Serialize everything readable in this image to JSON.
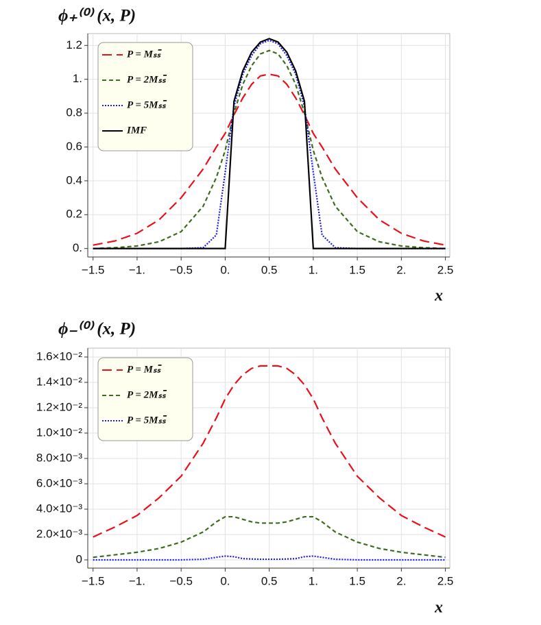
{
  "chart_data": [
    {
      "type": "line",
      "title": "ϕ₊⁽⁰⁾ (x, P)",
      "x_label": "x",
      "grid": true,
      "legend": "upper left",
      "xlim": [
        -1.56,
        2.55
      ],
      "ylim": [
        -0.05,
        1.27
      ],
      "xticks": [
        {
          "value": -1.5,
          "label": "−1.5"
        },
        {
          "value": -1,
          "label": "−1."
        },
        {
          "value": -0.5,
          "label": "−0.5"
        },
        {
          "value": 0,
          "label": "0."
        },
        0.5,
        {
          "value": 1,
          "label": "1."
        },
        1.5,
        {
          "value": 2,
          "label": "2."
        },
        2.5
      ],
      "yticks": [
        {
          "value": 0,
          "label": "0."
        },
        0.2,
        0.4,
        0.6,
        0.8,
        {
          "value": 1,
          "label": "1."
        },
        1.2
      ],
      "x": [
        -1.5,
        -1.25,
        -1,
        -0.75,
        -0.5,
        -0.25,
        -0.1,
        0,
        0.1,
        0.2,
        0.3,
        0.4,
        0.5,
        0.6,
        0.7,
        0.8,
        0.9,
        1,
        1.1,
        1.25,
        1.5,
        1.75,
        2,
        2.25,
        2.5
      ],
      "series": [
        {
          "name": "P = Mₛₛ̄",
          "color": "#e8101a",
          "linestyle": "long-dash",
          "values": [
            0.02,
            0.045,
            0.09,
            0.17,
            0.3,
            0.47,
            0.6,
            0.68,
            0.79,
            0.89,
            0.97,
            1.02,
            1.03,
            1.02,
            0.97,
            0.89,
            0.79,
            0.68,
            0.6,
            0.47,
            0.3,
            0.17,
            0.09,
            0.045,
            0.02
          ]
        },
        {
          "name": "P = 2Mₛₛ̄",
          "color": "#3d6b1f",
          "linestyle": "dashed",
          "values": [
            0,
            0.005,
            0.015,
            0.04,
            0.1,
            0.25,
            0.42,
            0.58,
            0.8,
            0.97,
            1.08,
            1.15,
            1.17,
            1.15,
            1.08,
            0.97,
            0.8,
            0.58,
            0.42,
            0.25,
            0.1,
            0.04,
            0.015,
            0.005,
            0
          ]
        },
        {
          "name": "P = 5Mₛₛ̄",
          "color": "#1a1ae8",
          "linestyle": "dotted",
          "values": [
            0,
            0,
            0,
            0,
            0,
            0.005,
            0.08,
            0.45,
            0.84,
            1.03,
            1.14,
            1.21,
            1.23,
            1.21,
            1.14,
            1.03,
            0.84,
            0.45,
            0.08,
            0.005,
            0,
            0,
            0,
            0,
            0
          ]
        },
        {
          "name": "IMF",
          "color": "#000000",
          "linestyle": "solid",
          "values": [
            0,
            0,
            0,
            0,
            0,
            0,
            0,
            0,
            0.87,
            1.05,
            1.16,
            1.22,
            1.24,
            1.22,
            1.16,
            1.05,
            0.87,
            0,
            0,
            0,
            0,
            0,
            0,
            0,
            0
          ]
        }
      ]
    },
    {
      "type": "line",
      "title": "ϕ₋⁽⁰⁾ (x, P)",
      "x_label": "x",
      "grid": true,
      "legend": "upper left",
      "xlim": [
        -1.56,
        2.55
      ],
      "ylim": [
        -0.00065,
        0.0167
      ],
      "xticks": [
        {
          "value": -1.5,
          "label": "−1.5"
        },
        {
          "value": -1,
          "label": "−1."
        },
        {
          "value": -0.5,
          "label": "−0.5"
        },
        {
          "value": 0,
          "label": "0."
        },
        0.5,
        {
          "value": 1,
          "label": "1."
        },
        1.5,
        {
          "value": 2,
          "label": "2."
        },
        2.5
      ],
      "yticks": [
        0,
        {
          "value": 0.002,
          "label": "2.0×10⁻³"
        },
        {
          "value": 0.004,
          "label": "4.0×10⁻³"
        },
        {
          "value": 0.006,
          "label": "6.0×10⁻³"
        },
        {
          "value": 0.008,
          "label": "8.0×10⁻³"
        },
        {
          "value": 0.01,
          "label": "1.0×10⁻²"
        },
        {
          "value": 0.012,
          "label": "1.2×10⁻²"
        },
        {
          "value": 0.014,
          "label": "1.4×10⁻²"
        },
        {
          "value": 0.016,
          "label": "1.6×10⁻²"
        }
      ],
      "x": [
        -1.5,
        -1.25,
        -1,
        -0.75,
        -0.5,
        -0.25,
        -0.1,
        0,
        0.1,
        0.2,
        0.3,
        0.4,
        0.5,
        0.6,
        0.7,
        0.8,
        0.9,
        1,
        1.1,
        1.25,
        1.5,
        1.75,
        2,
        2.25,
        2.5
      ],
      "series": [
        {
          "name": "P = Mₛₛ̄",
          "color": "#e8101a",
          "linestyle": "long-dash",
          "values": [
            0.0018,
            0.0026,
            0.0035,
            0.0049,
            0.0066,
            0.0092,
            0.0112,
            0.0127,
            0.0138,
            0.0146,
            0.0151,
            0.0153,
            0.0153,
            0.0153,
            0.0151,
            0.0146,
            0.0138,
            0.0127,
            0.0112,
            0.0092,
            0.0066,
            0.0049,
            0.0035,
            0.0026,
            0.0018
          ]
        },
        {
          "name": "P = 2Mₛₛ̄",
          "color": "#3d6b1f",
          "linestyle": "dashed",
          "values": [
            0.0002,
            0.0004,
            0.0006,
            0.0009,
            0.0014,
            0.0022,
            0.003,
            0.0034,
            0.0034,
            0.0032,
            0.003,
            0.0029,
            0.0029,
            0.0029,
            0.003,
            0.0032,
            0.0034,
            0.0034,
            0.003,
            0.0022,
            0.0014,
            0.0009,
            0.0006,
            0.0004,
            0.0002
          ]
        },
        {
          "name": "P = 5Mₛₛ̄",
          "color": "#1a1ae8",
          "linestyle": "dotted",
          "values": [
            0,
            0,
            0,
            0,
            0,
            5e-05,
            0.0002,
            0.0003,
            0.00025,
            0.0001,
            7e-05,
            5e-05,
            5e-05,
            5e-05,
            7e-05,
            0.0001,
            0.00025,
            0.0003,
            0.0002,
            5e-05,
            0,
            0,
            0,
            0,
            0
          ]
        }
      ]
    }
  ]
}
